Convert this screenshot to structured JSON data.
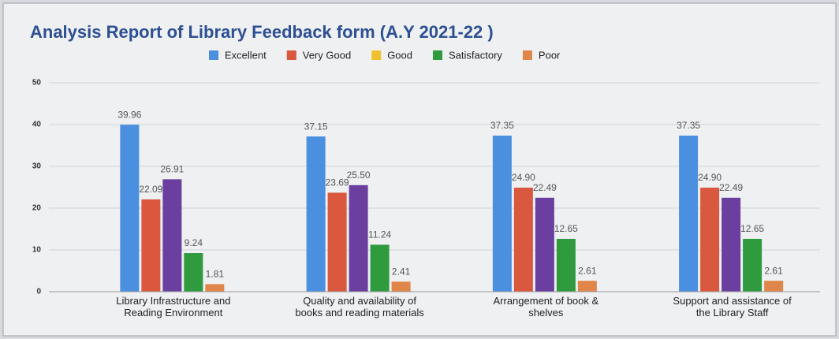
{
  "chart_data": {
    "type": "bar",
    "title": "Analysis Report of Library Feedback form (A.Y  2021-22 )",
    "categories": [
      "Library Infrastructure and\nReading Environment",
      "Quality and availability of\nbooks and reading materials",
      "Arrangement of book &\nshelves",
      "Support and assistance of\nthe Library Staff"
    ],
    "series": [
      {
        "name": "Excellent",
        "color": "#4a8fe0",
        "values": [
          39.96,
          37.15,
          37.35,
          37.35
        ],
        "value_labels": [
          "39.96",
          "37.15",
          "37.35",
          "37.35"
        ]
      },
      {
        "name": "Very Good",
        "color": "#d9583e",
        "values": [
          22.09,
          23.69,
          24.9,
          24.9
        ],
        "value_labels": [
          "22.09",
          "23.69",
          "24.90",
          "24.90"
        ]
      },
      {
        "name": "Good",
        "color": "#6a3fa0",
        "legend_color": "#f0c030",
        "values": [
          26.91,
          25.5,
          22.49,
          22.49
        ],
        "value_labels": [
          "26.91",
          "25.50",
          "22.49",
          "22.49"
        ]
      },
      {
        "name": "Satisfactory",
        "color": "#2f9a3e",
        "values": [
          9.24,
          11.24,
          12.65,
          12.65
        ],
        "value_labels": [
          "9.24",
          "11.24",
          "12.65",
          "12.65"
        ]
      },
      {
        "name": "Poor",
        "color": "#e0864a",
        "values": [
          1.81,
          2.41,
          2.61,
          2.61
        ],
        "value_labels": [
          "1.81",
          "2.41",
          "2.61",
          "2.61"
        ]
      }
    ],
    "ylim": [
      0,
      50
    ],
    "yticks": [
      0,
      10,
      20,
      30,
      40,
      50
    ],
    "grid": true,
    "legend": "top"
  }
}
